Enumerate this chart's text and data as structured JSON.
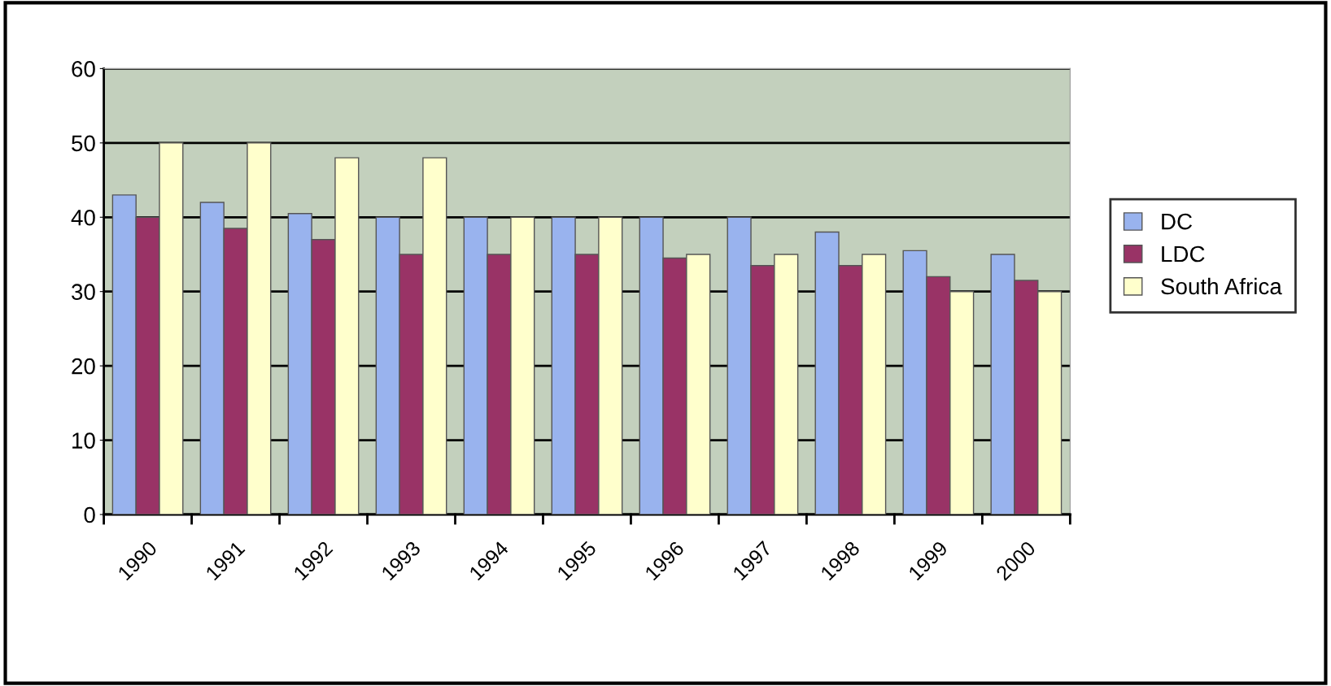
{
  "chart_data": {
    "type": "bar",
    "categories": [
      "1990",
      "1991",
      "1992",
      "1993",
      "1994",
      "1995",
      "1996",
      "1997",
      "1998",
      "1999",
      "2000"
    ],
    "series": [
      {
        "name": "DC",
        "color": "#99b3ee",
        "values": [
          43,
          42,
          40.5,
          40,
          40,
          40,
          40,
          40,
          38,
          35.5,
          35
        ]
      },
      {
        "name": "LDC",
        "color": "#993366",
        "values": [
          40,
          38.5,
          37,
          35,
          35,
          35,
          34.5,
          33.5,
          33.5,
          32,
          31.5
        ]
      },
      {
        "name": "South Africa",
        "color": "#ffffcc",
        "values": [
          50,
          50,
          48,
          48,
          40,
          40,
          35,
          35,
          35,
          30,
          30
        ]
      }
    ],
    "ylim": [
      0,
      60
    ],
    "yticks": [
      0,
      10,
      20,
      30,
      40,
      50,
      60
    ],
    "grid": "y",
    "legend": "right"
  }
}
